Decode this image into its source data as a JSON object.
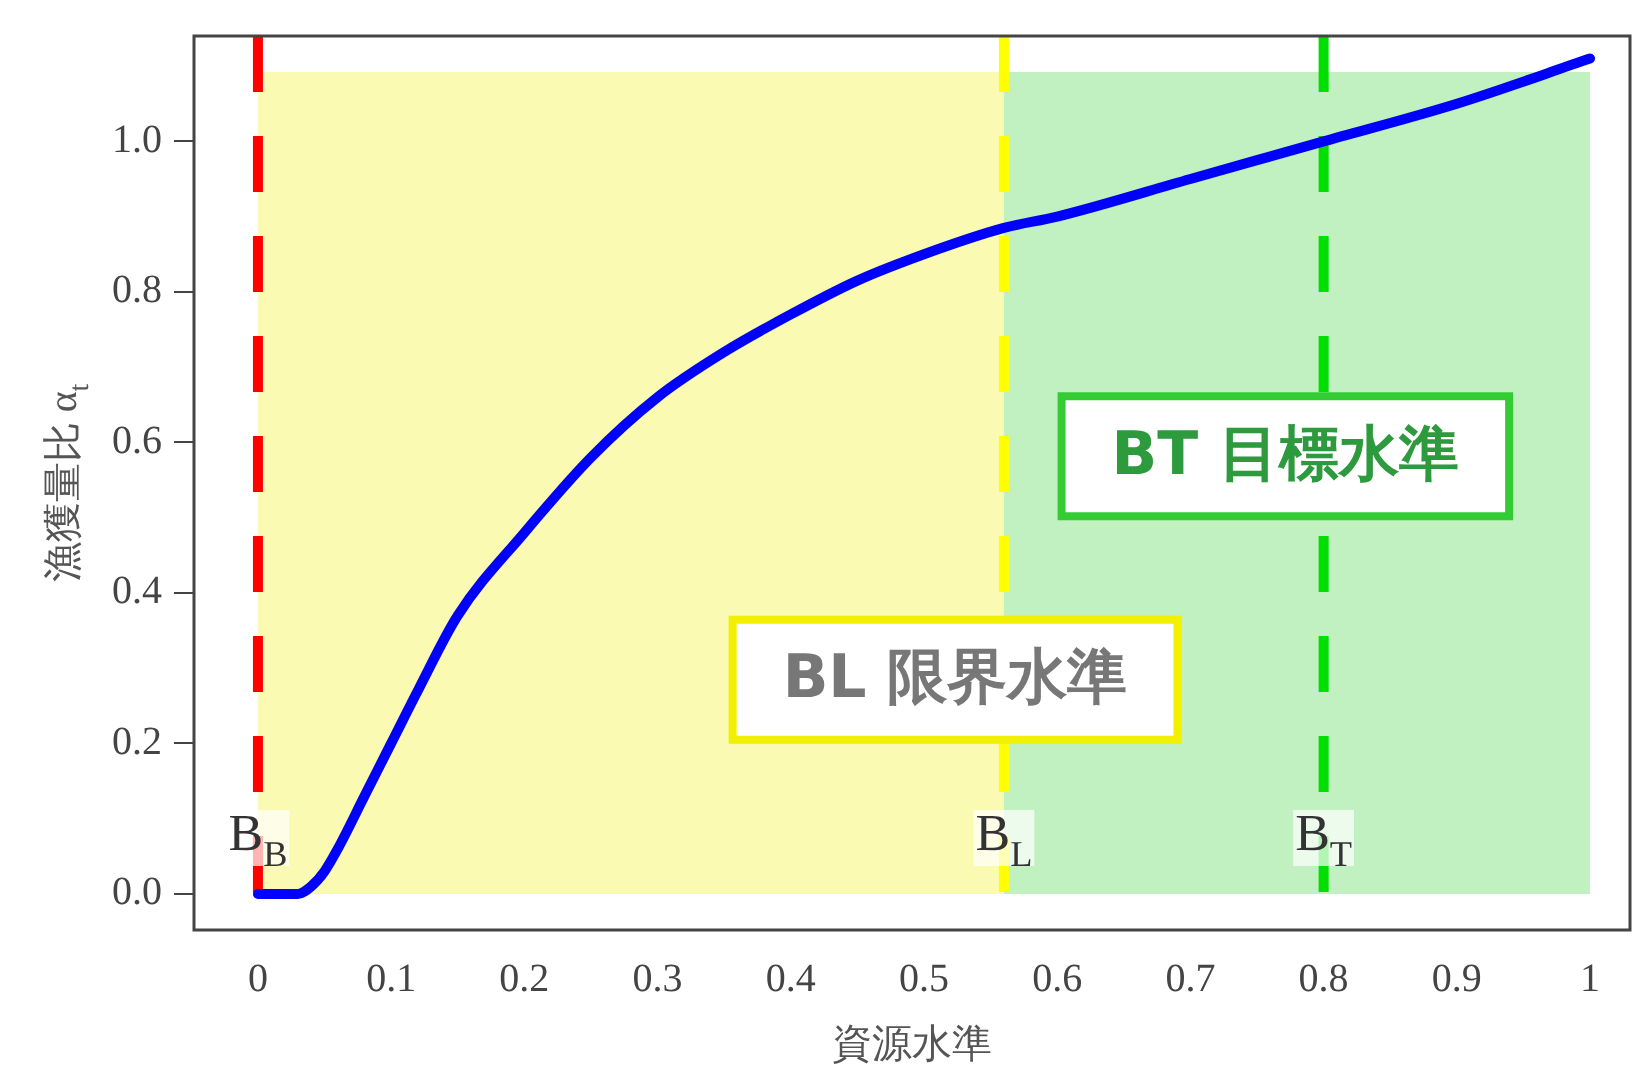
{
  "chart_data": {
    "type": "line",
    "xlabel": "資源水準",
    "ylabel": "漁獲量比 α$_{t}$",
    "x": [
      0,
      0.01,
      0.02,
      0.03,
      0.04,
      0.05,
      0.06,
      0.08,
      0.1,
      0.12,
      0.15,
      0.2,
      0.25,
      0.3,
      0.35,
      0.4,
      0.45,
      0.5,
      0.56,
      0.6,
      0.7,
      0.8,
      0.9,
      1.0
    ],
    "series": [
      {
        "color": "#0000ff",
        "values": [
          0,
          0,
          0,
          0,
          0.01,
          0.03,
          0.06,
          0.13,
          0.2,
          0.27,
          0.37,
          0.48,
          0.58,
          0.66,
          0.72,
          0.77,
          0.815,
          0.85,
          0.885,
          0.9,
          0.95,
          1.0,
          1.05,
          1.11
        ]
      }
    ],
    "xlim": [
      -0.048,
      1.03
    ],
    "ylim": [
      -0.048,
      1.14
    ],
    "xticks": [
      0,
      0.1,
      0.2,
      0.3,
      0.4,
      0.5,
      0.6,
      0.7,
      0.8,
      0.9,
      1
    ],
    "yticks": [
      {
        "value": 0,
        "label": "0.0"
      },
      {
        "value": 0.2,
        "label": "0.2"
      },
      {
        "value": 0.4,
        "label": "0.4"
      },
      {
        "value": 0.6,
        "label": "0.6"
      },
      {
        "value": 0.8,
        "label": "0.8"
      },
      {
        "value": 1,
        "label": "1.0"
      }
    ],
    "bands": [
      {
        "axis": "x",
        "from": 0,
        "to": 0.56,
        "color": "#f0f000"
      },
      {
        "axis": "x",
        "from": 0.56,
        "to": 1.0,
        "color": "#33cc33"
      }
    ],
    "ref_lines": [
      {
        "axis": "x",
        "value": 0,
        "label": "B$_{B}$",
        "color": "#ff0000",
        "line_style": "dashed"
      },
      {
        "axis": "x",
        "value": 0.56,
        "label": "B$_{L}$",
        "color": "#ffff00",
        "line_style": "dashed"
      },
      {
        "axis": "x",
        "value": 0.8,
        "label": "B$_{T}$",
        "color": "#00e000",
        "line_style": "dashed"
      }
    ],
    "annotations": [
      "BL 限界水準",
      "BT 目標水準"
    ],
    "grid": false,
    "legend": false,
    "marker": "none",
    "line_style": "solid"
  }
}
